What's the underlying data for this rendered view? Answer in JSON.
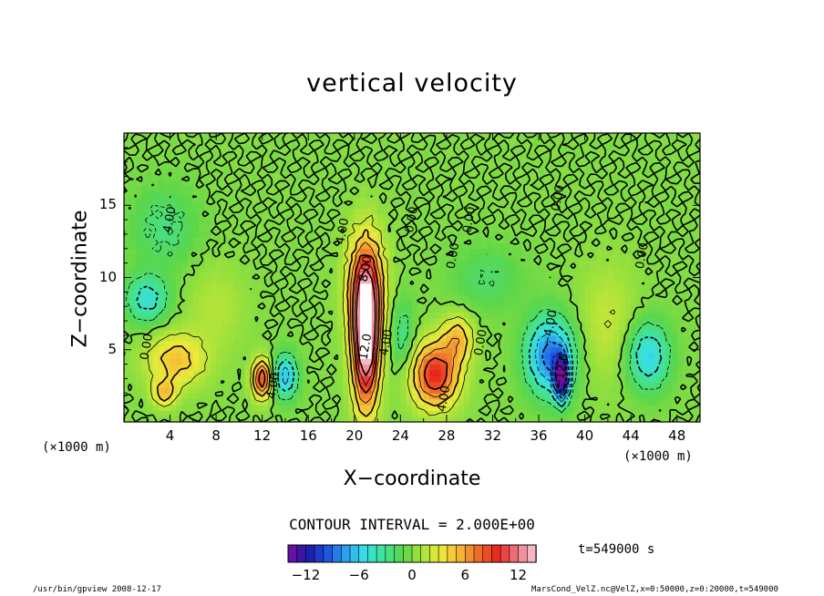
{
  "chart_data": {
    "type": "heatmap",
    "title": "vertical velocity",
    "xlabel": "X−coordinate",
    "ylabel": "Z−coordinate",
    "x_unit_left": "(×1000 m)",
    "x_unit_right": "(×1000 m)",
    "x_ticks": [
      "4",
      "8",
      "12",
      "16",
      "20",
      "24",
      "28",
      "32",
      "36",
      "40",
      "44",
      "48"
    ],
    "y_ticks": [
      "5",
      "10",
      "15"
    ],
    "xlim": [
      0,
      50
    ],
    "ylim": [
      0,
      20
    ],
    "contour_interval": "CONTOUR INTERVAL = 2.000E+00",
    "colorbar": {
      "min": -14,
      "max": 14,
      "ticks": [
        "−12",
        "−6",
        "0",
        "6",
        "12"
      ],
      "colors": [
        "#7a0fa3",
        "#1d17a6",
        "#1f4fe0",
        "#2aa0ee",
        "#38dfe6",
        "#3fe39a",
        "#5ad64a",
        "#a6e23a",
        "#ecea3a",
        "#f6b635",
        "#ef6a2a",
        "#e8261f",
        "#f07a88",
        "#f8c7cf"
      ]
    },
    "contour_labels": [
      {
        "x": 4,
        "z": 14,
        "text": "4.00"
      },
      {
        "x": 2,
        "z": 5.2,
        "text": "0.00"
      },
      {
        "x": 19,
        "z": 13.2,
        "text": "4.00"
      },
      {
        "x": 21,
        "z": 10.6,
        "text": "8.00"
      },
      {
        "x": 21,
        "z": 5.2,
        "text": "12.0"
      },
      {
        "x": 22.8,
        "z": 5.5,
        "text": "4.00"
      },
      {
        "x": 25,
        "z": 14,
        "text": "0.00"
      },
      {
        "x": 28.6,
        "z": 11.5,
        "text": "0.00"
      },
      {
        "x": 30,
        "z": 14,
        "text": "0.00"
      },
      {
        "x": 27.8,
        "z": 1.6,
        "text": "4.00"
      },
      {
        "x": 31,
        "z": 5.5,
        "text": "0.00"
      },
      {
        "x": 13,
        "z": 2.5,
        "text": "4.00"
      },
      {
        "x": 37,
        "z": 6.5,
        "text": "−4.00"
      },
      {
        "x": 38,
        "z": 3.5,
        "text": "−12.0"
      },
      {
        "x": 37.7,
        "z": 15.5,
        "text": "0.00"
      },
      {
        "x": 45,
        "z": 11.5,
        "text": "0.00"
      }
    ],
    "features": [
      {
        "x": 21,
        "z": 5.8,
        "sx": 1.1,
        "sz": 4.6,
        "value": 16
      },
      {
        "x": 21,
        "z": 9.5,
        "sx": 1.6,
        "sz": 3.6,
        "value": 7
      },
      {
        "x": 27,
        "z": 3.3,
        "sx": 2.0,
        "sz": 2.2,
        "value": 10
      },
      {
        "x": 29,
        "z": 5.8,
        "sx": 1.3,
        "sz": 1.6,
        "value": 5
      },
      {
        "x": 12,
        "z": 3.0,
        "sx": 0.8,
        "sz": 1.3,
        "value": 10
      },
      {
        "x": 4.5,
        "z": 4.3,
        "sx": 2.5,
        "sz": 1.8,
        "value": 5
      },
      {
        "x": 3.5,
        "z": 2.0,
        "sx": 1.0,
        "sz": 0.9,
        "value": 5
      },
      {
        "x": 37,
        "z": 4.6,
        "sx": 2.0,
        "sz": 2.6,
        "value": -9
      },
      {
        "x": 38,
        "z": 3.0,
        "sx": 0.55,
        "sz": 1.5,
        "value": -14
      },
      {
        "x": 45.5,
        "z": 4.6,
        "sx": 1.8,
        "sz": 2.3,
        "value": -6
      },
      {
        "x": 14,
        "z": 3.2,
        "sx": 1.0,
        "sz": 1.5,
        "value": -7
      },
      {
        "x": 2,
        "z": 8.5,
        "sx": 1.8,
        "sz": 1.6,
        "value": -5
      },
      {
        "x": 3.5,
        "z": 13.5,
        "sx": 2.8,
        "sz": 2.8,
        "value": -2.5
      },
      {
        "x": 24.2,
        "z": 6.0,
        "sx": 1.0,
        "sz": 2.5,
        "value": -3
      },
      {
        "x": 31.5,
        "z": 10.0,
        "sx": 3.0,
        "sz": 2.2,
        "value": -2
      },
      {
        "x": 8,
        "z": 8,
        "sx": 2.5,
        "sz": 3.0,
        "value": 1.5
      },
      {
        "x": 42,
        "z": 7,
        "sx": 2.5,
        "sz": 4,
        "value": 2
      }
    ],
    "time_label": "t=549000  s",
    "footer_left": "/usr/bin/gpview  2008-12-17",
    "footer_right": "MarsCond_VelZ.nc@VelZ,x=0:50000,z=0:20000,t=549000"
  }
}
